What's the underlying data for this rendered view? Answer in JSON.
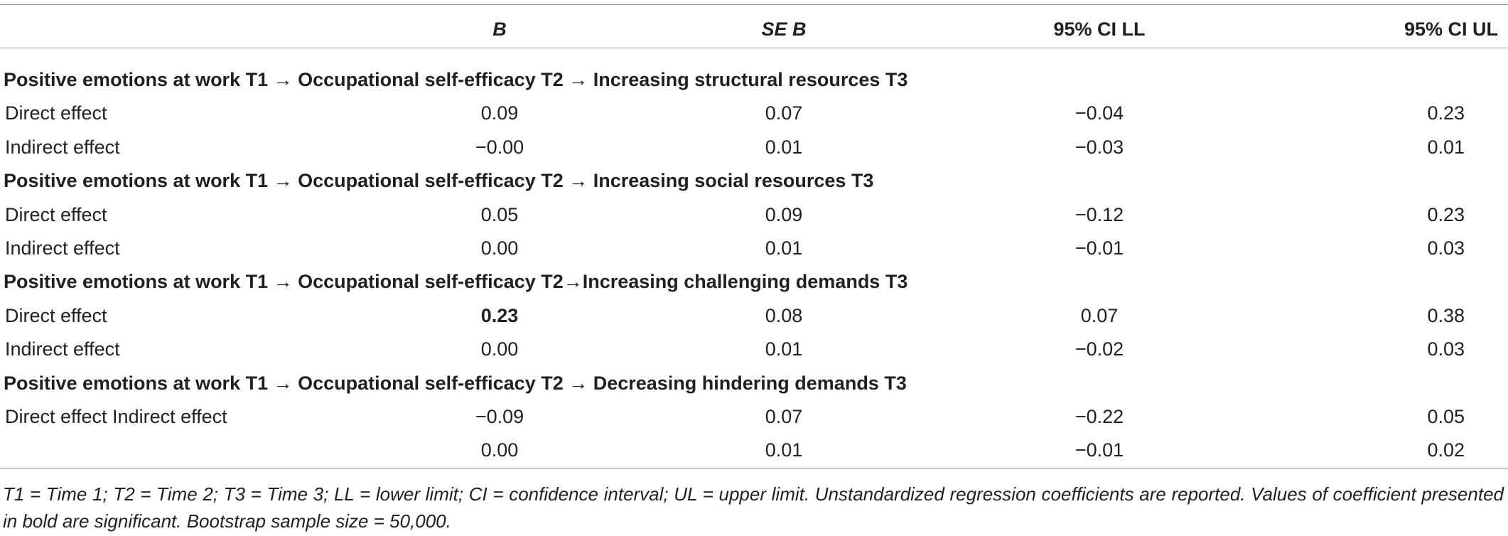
{
  "table": {
    "columns": [
      "B",
      "SE B",
      "95% CI LL",
      "95% CI UL"
    ],
    "sections": [
      {
        "title": "Positive emotions at work T1 → Occupational self-efficacy T2 → Increasing structural resources T3",
        "rows": [
          {
            "label": "Direct effect",
            "cells": [
              "0.09",
              "0.07",
              "−0.04",
              "0.23"
            ]
          },
          {
            "label": "Indirect effect",
            "cells": [
              "−0.00",
              "0.01",
              "−0.03",
              "0.01"
            ]
          }
        ]
      },
      {
        "title": "Positive emotions at work T1 → Occupational self-efficacy T2 → Increasing social resources T3",
        "rows": [
          {
            "label": "Direct effect",
            "cells": [
              "0.05",
              "0.09",
              "−0.12",
              "0.23"
            ]
          },
          {
            "label": "Indirect effect",
            "cells": [
              "0.00",
              "0.01",
              "−0.01",
              "0.03"
            ]
          }
        ]
      },
      {
        "title": "Positive emotions at work T1 → Occupational self-efficacy T2→Increasing challenging demands T3",
        "rows": [
          {
            "label": "Direct effect",
            "cells": [
              "0.23",
              "0.08",
              "0.07",
              "0.38"
            ],
            "bold_cells": [
              0
            ]
          },
          {
            "label": "Indirect effect",
            "cells": [
              "0.00",
              "0.01",
              "−0.02",
              "0.03"
            ]
          }
        ]
      },
      {
        "title": "Positive emotions at work T1 → Occupational self-efficacy T2 → Decreasing hindering demands T3",
        "rows": [
          {
            "label": "Direct effect Indirect effect",
            "cells": [
              "−0.09",
              "0.07",
              "−0.22",
              "0.05"
            ]
          },
          {
            "cells": [
              "0.00",
              "0.01",
              "−0.01",
              "0.02"
            ]
          }
        ]
      }
    ],
    "footnote": "T1 = Time 1; T2 = Time 2; T3 = Time 3; LL = lower limit; CI = confidence interval; UL = upper limit. Unstandardized regression coefficients are reported. Values of coefficient presented in bold are significant. Bootstrap sample size = 50,000."
  }
}
